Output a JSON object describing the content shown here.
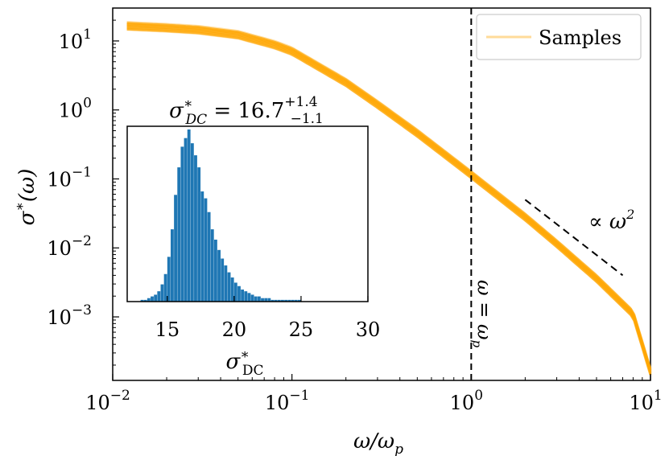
{
  "chart_data": [
    {
      "type": "line",
      "xscale": "log",
      "yscale": "log",
      "xlim": [
        0.01,
        10
      ],
      "ylim": [
        0.00012,
        30
      ],
      "xlabel": "ω/ω_p",
      "ylabel": "σ*(ω)",
      "xticks": [
        {
          "value": 0.01,
          "base": "10",
          "exp": "−2"
        },
        {
          "value": 0.1,
          "base": "10",
          "exp": "−1"
        },
        {
          "value": 1,
          "base": "10",
          "exp": "0"
        },
        {
          "value": 10,
          "base": "10",
          "exp": "1"
        }
      ],
      "yticks": [
        {
          "value": 10,
          "base": "10",
          "exp": "1"
        },
        {
          "value": 1,
          "base": "10",
          "exp": "0"
        },
        {
          "value": 0.1,
          "base": "10",
          "exp": "−1"
        },
        {
          "value": 0.01,
          "base": "10",
          "exp": "−2"
        },
        {
          "value": 0.001,
          "base": "10",
          "exp": "−3"
        }
      ],
      "series": [
        {
          "name": "Samples",
          "color": "#ffa500",
          "x": [
            0.012,
            0.02,
            0.03,
            0.05,
            0.08,
            0.1,
            0.2,
            0.3,
            0.5,
            1,
            2,
            3,
            5,
            8,
            10
          ],
          "y": [
            16.5,
            15.5,
            14.5,
            12.3,
            8.8,
            7.1,
            2.5,
            1.2,
            0.46,
            0.115,
            0.028,
            0.0115,
            0.0036,
            0.0011,
            0.00016
          ],
          "band_low_factor": 0.85,
          "band_high_factor": 1.18
        }
      ],
      "vline": {
        "x": 1,
        "label": "ω = ω_p",
        "style": "dashed"
      },
      "trend_line": {
        "x": [
          2,
          7
        ],
        "y": [
          0.05,
          0.004
        ],
        "label": "∝ ω²",
        "style": "dashed"
      },
      "legend": {
        "position": "top-right",
        "entries": [
          "Samples"
        ]
      }
    },
    {
      "type": "bar",
      "title": "σ*_DC = 16.7^{+1.4}_{−1.1}",
      "xlabel": "σ*_DC",
      "xlim": [
        12,
        30
      ],
      "xticks": [
        15,
        20,
        25,
        30
      ],
      "color": "#1f77b4",
      "bin_width": 0.25,
      "bins_start": 13.0,
      "counts": [
        1,
        1,
        2,
        3,
        4,
        6,
        10,
        16,
        26,
        42,
        62,
        78,
        90,
        95,
        100,
        92,
        85,
        78,
        64,
        60,
        52,
        42,
        36,
        30,
        25,
        21,
        17,
        14,
        11,
        9,
        7,
        6,
        5,
        4,
        3,
        3,
        2,
        2,
        2,
        1,
        1,
        1,
        1,
        1,
        1,
        1,
        1,
        1
      ]
    }
  ],
  "labels": {
    "legend_samples": "Samples",
    "inset_title_main": "σ",
    "inset_title_sup": "∗",
    "inset_title_sub": "DC",
    "inset_title_eq": " = 16.7",
    "inset_title_plus": "+1.4",
    "inset_title_minus": "−1.1",
    "inset_xlabel_main": "σ",
    "inset_xlabel_sup": "∗",
    "inset_xlabel_sub": "DC",
    "vline_label": "ω = ω",
    "vline_label_sub": "p",
    "trend_label": "∝ ω",
    "trend_label_sup": "2",
    "ylabel_main": "σ",
    "ylabel_sup": "∗",
    "ylabel_rest": "(ω)",
    "xlabel_main": "ω/ω",
    "xlabel_sub": "p"
  }
}
